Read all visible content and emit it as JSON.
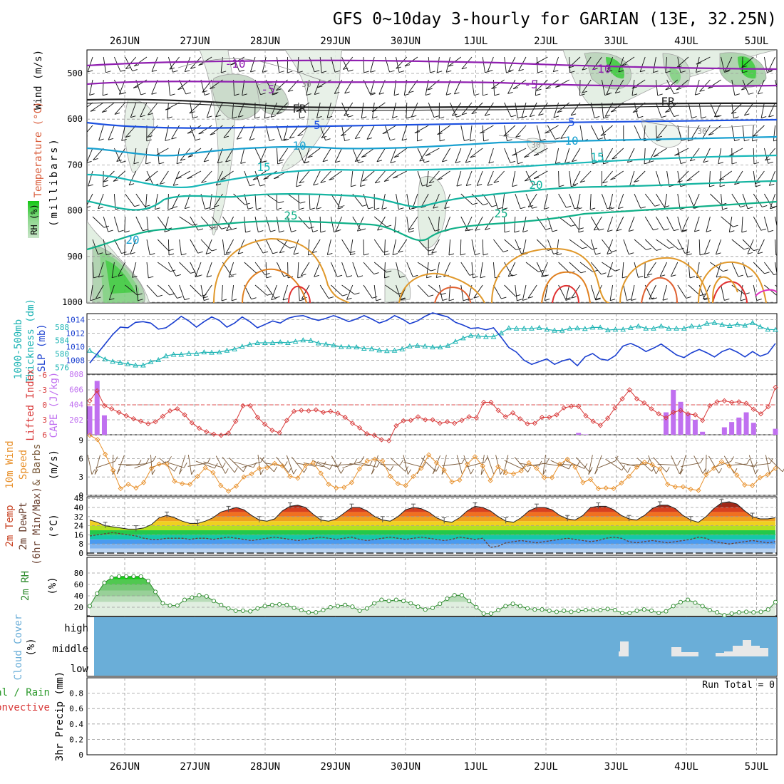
{
  "title": "GFS 0~10day 3-hourly for GARIAN (13E, 32.25N)",
  "dates": [
    "26JUN",
    "27JUN",
    "28JUN",
    "29JUN",
    "30JUN",
    "1JUL",
    "2JUL",
    "3JUL",
    "4JUL",
    "5JUL"
  ],
  "panels": {
    "upper": {
      "ylabel_wind": "Wind (m/s)",
      "ylabel_temp": "Temperature (°C)",
      "ylabel_rh": "RH (%)",
      "ylabel_mb": "(millibars)",
      "yticks": [
        "500",
        "600",
        "700",
        "800",
        "900",
        "1000"
      ],
      "contour_labels": [
        "-10",
        "-5",
        "FR",
        "-5",
        "-10",
        "FR",
        "5",
        "5",
        "10",
        "10",
        "15",
        "15",
        "20",
        "20",
        "25",
        "25",
        "30",
        "30",
        "30",
        "30"
      ]
    },
    "slp": {
      "ylabel_thickness": "Thickness (dm)",
      "ylabel_1000_500": "1000-500mb",
      "ylabel_slp": "SLP (mb)",
      "yticks_left": [
        "588",
        "584",
        "580",
        "576"
      ],
      "yticks_right": [
        "1014",
        "1012",
        "1010",
        "1008"
      ]
    },
    "cape": {
      "ylabel_li": "Lifted Index",
      "ylabel_cape": "CAPE (J/kg)",
      "yticks_li": [
        "-6",
        "-3",
        "0",
        "3",
        "6"
      ],
      "yticks_cape": [
        "808",
        "606",
        "404",
        "202"
      ]
    },
    "wind10": {
      "ylabel_a": "10m Wind",
      "ylabel_b": "Speed",
      "ylabel_c": "& Barbs",
      "ylabel_unit": "(m/s)",
      "yticks": [
        "9",
        "6",
        "3",
        "0"
      ]
    },
    "temp": {
      "ylabel_a": "2m Temp",
      "ylabel_b": "2m DewPt",
      "ylabel_c": "(6hr Min/Max)",
      "ylabel_unit": "(°C)",
      "yticks": [
        "48",
        "40",
        "32",
        "24",
        "16",
        "8",
        "0"
      ]
    },
    "rh": {
      "ylabel_a": "2m RH",
      "ylabel_unit": "(%)",
      "yticks": [
        "80",
        "60",
        "40",
        "20"
      ]
    },
    "cloud": {
      "ylabel_a": "Cloud Cover",
      "ylabel_unit": "(%)",
      "levels": [
        "high",
        "middle",
        "low"
      ]
    },
    "precip": {
      "ylabel_a": "Total / Rain",
      "ylabel_b": "Convective",
      "ylabel_c": "3hr Precip (mm)",
      "yticks": [
        "0.8",
        "0.6",
        "0.4",
        "0.2",
        "0"
      ],
      "run_total": "Run Total = 0"
    }
  },
  "colors": {
    "slp": "#1a3fd0",
    "thickness": "#1eb4b4",
    "li": "#d83838",
    "cape": "#c070f0",
    "wind": "#e8902a",
    "rh": "#2c8a2c",
    "cloud": "#6aaed8",
    "grid": "#9a9a9a"
  },
  "chart_data": [
    {
      "type": "line",
      "name": "SLP (mb)",
      "x_step_hours": 3,
      "values": [
        1007.6,
        1009,
        1010.4,
        1011.8,
        1012.9,
        1012.8,
        1013.6,
        1013.7,
        1013.5,
        1012.6,
        1012.8,
        1013.6,
        1014.5,
        1013.8,
        1012.9,
        1013.7,
        1014.4,
        1013.9,
        1012.9,
        1013.5,
        1014.4,
        1013.7,
        1012.8,
        1013.3,
        1013.8,
        1013.5,
        1014.2,
        1014.5,
        1014.6,
        1014.2,
        1013.9,
        1014.2,
        1014.6,
        1014.2,
        1013.7,
        1014.1,
        1014.6,
        1014.1,
        1013.5,
        1013.9,
        1014.6,
        1014.1,
        1013.4,
        1013.8,
        1014.5,
        1015.0,
        1014.7,
        1014.4,
        1013.6,
        1013.2,
        1012.7,
        1012.8,
        1012.5,
        1012.8,
        1011.4,
        1009.9,
        1009.2,
        1008.0,
        1007.4,
        1007.8,
        1008.2,
        1007.4,
        1007.9,
        1008.2,
        1007.2,
        1008.5,
        1009.0,
        1008.2,
        1008.0,
        1008.7,
        1010.1,
        1010.5,
        1010.0,
        1009.3,
        1009.8,
        1010.4,
        1009.6,
        1008.8,
        1008.4,
        1009.1,
        1009.6,
        1009.1,
        1008.5,
        1009.3,
        1009.7,
        1009.2,
        1008.5,
        1009.3,
        1008.6,
        1009.0,
        1010.5
      ]
    },
    {
      "type": "line",
      "name": "1000-500mb Thickness (dm)",
      "values": [
        581,
        579.6,
        578.4,
        577.7,
        577.4,
        577,
        576.6,
        576.6,
        577.6,
        578.2,
        579.4,
        579.8,
        579.8,
        580.1,
        580.1,
        580.5,
        580.4,
        580.5,
        581.0,
        581.4,
        582.2,
        582.8,
        583.3,
        583.3,
        583.3,
        583.5,
        583.3,
        583.7,
        584.1,
        584.0,
        583.2,
        582.9,
        582.6,
        582.1,
        582.1,
        582.0,
        581.6,
        581.5,
        581.1,
        580.9,
        581.0,
        581.4,
        582.3,
        582.5,
        582.3,
        582.0,
        582.0,
        582.5,
        583.7,
        584.7,
        585.5,
        585.3,
        585.1,
        585.1,
        586.2,
        587.7,
        587.6,
        587.6,
        587.6,
        587.8,
        587.3,
        587.0,
        587.0,
        587.6,
        587.7,
        587.5,
        587.9,
        587.9,
        587.1,
        587.3,
        587.3,
        587.8,
        588.3,
        587.6,
        587.6,
        588.3,
        587.6,
        587.6,
        587.6,
        588.3,
        588.1,
        589.1,
        589.3,
        588.7,
        588.4,
        588.8,
        588.5,
        589.3,
        588.1,
        587.3,
        587.2
      ]
    },
    {
      "type": "line",
      "name": "Lifted Index",
      "values": [
        -0.8,
        -2.8,
        0.2,
        0.8,
        1.5,
        2.2,
        2.8,
        3.3,
        3.8,
        3.4,
        2.3,
        1.2,
        0.8,
        2.0,
        3.6,
        4.7,
        5.4,
        5.9,
        6.1,
        5.7,
        3.3,
        0.2,
        0.2,
        2.5,
        3.9,
        5.1,
        5.6,
        3.1,
        1.3,
        1.1,
        1.2,
        1.0,
        1.5,
        1.3,
        1.7,
        2.5,
        3.7,
        4.6,
        5.8,
        6.1,
        7.0,
        7.2,
        4.2,
        3.2,
        3.1,
        2.4,
        3.0,
        3.0,
        3.7,
        3.4,
        3.7,
        3.1,
        2.4,
        2.6,
        -0.5,
        -0.5,
        1.1,
        2.4,
        1.6,
        2.8,
        3.8,
        3.7,
        2.5,
        2.5,
        2.0,
        0.6,
        0.3,
        0.3,
        2.2,
        3.3,
        4.1,
        2.7,
        0.6,
        -1.2,
        -3.0,
        -1.2,
        -0.4,
        0.8,
        1.8,
        2.6,
        1.5,
        1.1,
        1.8,
        2.0,
        3.1,
        0.2,
        -0.6,
        -0.8,
        -0.5,
        -0.6,
        -0.3,
        0.9,
        1.8,
        0.4,
        -3.5
      ]
    },
    {
      "type": "bar",
      "name": "CAPE (J/kg)",
      "values": [
        380,
        720,
        260,
        0,
        0,
        0,
        0,
        0,
        0,
        0,
        0,
        0,
        0,
        0,
        0,
        0,
        0,
        0,
        0,
        0,
        0,
        0,
        0,
        0,
        0,
        0,
        0,
        0,
        0,
        0,
        0,
        0,
        0,
        0,
        0,
        0,
        0,
        0,
        0,
        0,
        0,
        0,
        0,
        0,
        0,
        0,
        0,
        0,
        0,
        0,
        0,
        0,
        0,
        0,
        0,
        0,
        0,
        0,
        0,
        0,
        0,
        0,
        0,
        0,
        0,
        0,
        0,
        25,
        5,
        0,
        0,
        0,
        0,
        0,
        0,
        0,
        0,
        0,
        0,
        300,
        600,
        440,
        290,
        200,
        40,
        0,
        0,
        100,
        170,
        230,
        300,
        160,
        0,
        0,
        80
      ]
    },
    {
      "type": "line",
      "name": "10m Wind Speed (m/s)",
      "values": [
        9.8,
        9.1,
        6.7,
        4.1,
        1.1,
        1.8,
        1.2,
        2.1,
        4.4,
        5.1,
        5.1,
        2.3,
        1.9,
        1.8,
        3.1,
        4.5,
        3.7,
        1.6,
        0.7,
        1.5,
        3.0,
        3.5,
        4.4,
        4.5,
        5.2,
        4.8,
        3.1,
        2.8,
        4.9,
        5.3,
        3.6,
        1.8,
        1.2,
        1.3,
        2.1,
        4.3,
        5.6,
        5.9,
        5.6,
        3.1,
        1.9,
        1.6,
        3.1,
        4.4,
        6.6,
        5.3,
        4.1,
        2.2,
        2.5,
        5.1,
        6.3,
        4.8,
        2.4,
        4.7,
        3.7,
        3.5,
        4.0,
        5.3,
        4.4,
        2.9,
        2.9,
        5.1,
        5.9,
        4.6,
        2.1,
        2.6,
        1.1,
        1.2,
        1.1,
        2.0,
        3.1,
        4.6,
        5.4,
        5.0,
        4.3,
        1.8,
        1.4,
        1.4,
        1.0,
        0.8,
        3.4,
        4.4,
        5.5,
        4.8,
        3.3,
        1.7,
        1.6,
        2.9,
        3.4,
        4.4
      ]
    },
    {
      "type": "area",
      "name": "2m Temp (°C)",
      "values": [
        29,
        27,
        24,
        23,
        22,
        21,
        21,
        22,
        25,
        31,
        33,
        31,
        28,
        26,
        26,
        28,
        31,
        36,
        38,
        40,
        38,
        33,
        29,
        28,
        30,
        37,
        41,
        42,
        40,
        34,
        29,
        28,
        30,
        35,
        40,
        40,
        37,
        32,
        29,
        28,
        32,
        38,
        40,
        39,
        36,
        31,
        28,
        27,
        31,
        37,
        41,
        40,
        37,
        32,
        28,
        27,
        31,
        37,
        40,
        40,
        38,
        33,
        30,
        29,
        33,
        40,
        41,
        41,
        38,
        33,
        30,
        29,
        33,
        39,
        42,
        42,
        39,
        33,
        29,
        27,
        32,
        39,
        44,
        45,
        43,
        37,
        32,
        30,
        30,
        31
      ]
    },
    {
      "type": "line",
      "name": "2m DewPt (°C)",
      "values": [
        15,
        16,
        17,
        18,
        17,
        16,
        15,
        13,
        12,
        12,
        13,
        13,
        13,
        12,
        13,
        13,
        12,
        13,
        14,
        13,
        12,
        11,
        12,
        13,
        14,
        13,
        12,
        11,
        12,
        13,
        14,
        13,
        12,
        13,
        14,
        12,
        11,
        12,
        13,
        14,
        13,
        12,
        13,
        14,
        13,
        12,
        11,
        12,
        14,
        13,
        12,
        13,
        5,
        6,
        9,
        10,
        11,
        10,
        9,
        10,
        11,
        12,
        13,
        12,
        11,
        10,
        11,
        13,
        14,
        13,
        10,
        9,
        10,
        11,
        10,
        9,
        10,
        11,
        12,
        14,
        13,
        10,
        9,
        8,
        9,
        10,
        11,
        10,
        9,
        10
      ]
    },
    {
      "type": "area",
      "name": "2m RH (%)",
      "values": [
        22,
        44,
        63,
        72,
        74,
        74,
        74,
        74,
        66,
        47,
        27,
        23,
        23,
        33,
        37,
        41,
        39,
        31,
        24,
        18,
        14,
        14,
        13,
        18,
        22,
        24,
        25,
        24,
        19,
        15,
        11,
        11,
        15,
        20,
        22,
        24,
        21,
        14,
        18,
        27,
        33,
        31,
        33,
        31,
        27,
        21,
        16,
        19,
        26,
        35,
        41,
        41,
        31,
        20,
        9,
        9,
        15,
        22,
        26,
        22,
        18,
        16,
        16,
        14,
        12,
        14,
        12,
        14,
        15,
        15,
        15,
        17,
        15,
        10,
        10,
        14,
        16,
        14,
        10,
        13,
        22,
        29,
        33,
        28,
        22,
        15,
        11,
        6,
        9,
        11,
        12,
        11,
        12,
        16,
        29
      ]
    },
    {
      "type": "bar",
      "name": "3hr Precip (mm)",
      "values": [],
      "run_total": 0
    }
  ]
}
